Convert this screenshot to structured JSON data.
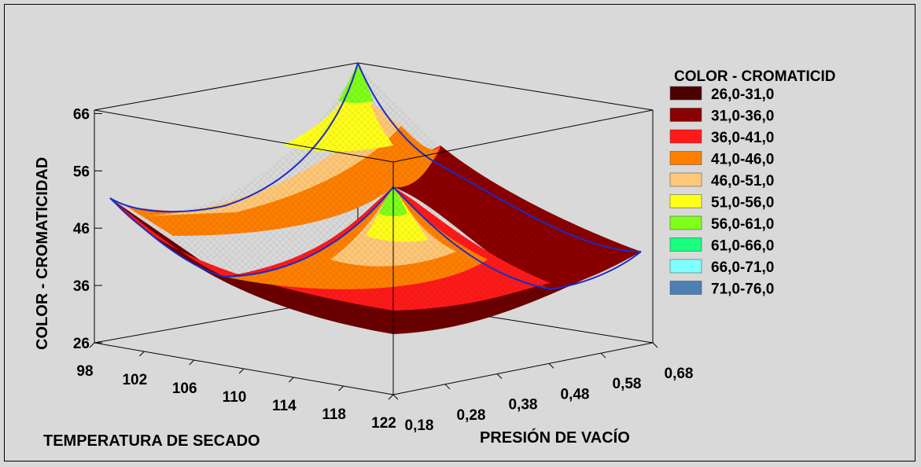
{
  "chart_data": {
    "type": "surface",
    "title": "",
    "zlabel": "COLOR - CROMATICIDAD",
    "xlabel": "TEMPERATURA DE SECADO",
    "ylabel": "PRESIÓN DE VACÍO",
    "x_ticks": [
      "98",
      "102",
      "106",
      "110",
      "114",
      "118",
      "122"
    ],
    "y_ticks": [
      "0,18",
      "0,28",
      "0,38",
      "0,48",
      "0,58",
      "0,68"
    ],
    "z_ticks": [
      "26",
      "36",
      "46",
      "56",
      "66"
    ],
    "xlim": [
      98,
      122
    ],
    "ylim": [
      0.18,
      0.68
    ],
    "zlim": [
      26,
      66
    ],
    "legend": {
      "title": "COLOR - CROMATICID",
      "position": "right",
      "entries": [
        {
          "label": "26,0-31,0",
          "color": "#4d0000"
        },
        {
          "label": "31,0-36,0",
          "color": "#8b0000"
        },
        {
          "label": "36,0-41,0",
          "color": "#ff1a1a"
        },
        {
          "label": "41,0-46,0",
          "color": "#ff8000"
        },
        {
          "label": "46,0-51,0",
          "color": "#ffc878"
        },
        {
          "label": "51,0-56,0",
          "color": "#ffff1a"
        },
        {
          "label": "56,0-61,0",
          "color": "#80ff1a"
        },
        {
          "label": "61,0-66,0",
          "color": "#1aff80"
        },
        {
          "label": "66,0-71,0",
          "color": "#80ffff"
        },
        {
          "label": "71,0-76,0",
          "color": "#4d80b3"
        }
      ]
    },
    "surface_corners": {
      "x98_y018": 51,
      "x122_y018": 50,
      "x98_y068": 67,
      "x122_y068": 43,
      "center_min": 26
    }
  }
}
